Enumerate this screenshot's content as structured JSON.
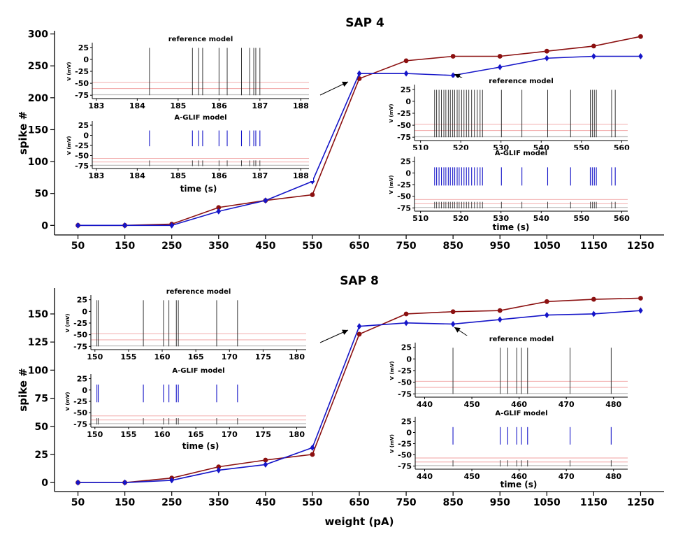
{
  "figure": {
    "xlabel": "weight (pA)"
  },
  "chart_data": [
    {
      "type": "line",
      "title": "SAP 4",
      "ylabel": "spike #",
      "xlabel": "weight (pA)",
      "x": [
        50,
        150,
        250,
        350,
        450,
        550,
        650,
        750,
        850,
        950,
        1050,
        1150,
        1250
      ],
      "xlim": [
        0,
        1300
      ],
      "ylim": [
        -15,
        305
      ],
      "yticks": [
        0,
        50,
        100,
        150,
        200,
        250,
        300
      ],
      "series": [
        {
          "key": "reference",
          "color": "#8b1010",
          "marker": "circle",
          "values": [
            0,
            0,
            2,
            28,
            39,
            48,
            230,
            258,
            265,
            265,
            273,
            281,
            296
          ]
        },
        {
          "key": "aglif",
          "color": "#1515c8",
          "marker": "diamond",
          "values": [
            0,
            0,
            0,
            22,
            39,
            69,
            238,
            238,
            235,
            248,
            262,
            265,
            265
          ]
        }
      ],
      "insets": [
        {
          "title": "reference model",
          "kind": "trace",
          "color": "#222222",
          "ylabel": "V (mV)",
          "xlabel": "",
          "xlim": [
            182.9,
            188.2
          ],
          "xticks": [
            183,
            184,
            185,
            186,
            187,
            188
          ],
          "yticks": [
            25,
            0,
            -25,
            -50,
            -75
          ],
          "spikes": [
            184.3,
            185.35,
            185.5,
            185.6,
            186.0,
            186.2,
            186.55,
            186.75,
            186.85,
            186.9,
            187.0
          ]
        },
        {
          "title": "A-GLIF model",
          "kind": "dual",
          "color": "#1515c8",
          "ylabel": "V (mV)",
          "xlabel": "time (s)",
          "xlim": [
            182.9,
            188.2
          ],
          "xticks": [
            183,
            184,
            185,
            186,
            187,
            188
          ],
          "yticks": [
            25,
            0,
            -25,
            -50,
            -75
          ],
          "spikes": [
            184.3,
            185.35,
            185.5,
            185.6,
            186.0,
            186.2,
            186.55,
            186.75,
            186.85,
            186.9,
            187.0
          ]
        },
        {
          "title": "reference model",
          "kind": "trace",
          "color": "#222222",
          "ylabel": "V (mV)",
          "xlabel": "",
          "xlim": [
            508.5,
            561.5
          ],
          "xticks": [
            510,
            520,
            530,
            540,
            550,
            560
          ],
          "yticks": [
            25,
            0,
            -25,
            -50,
            -75
          ],
          "spikes": [
            513.5,
            514.0,
            514.6,
            515.2,
            515.8,
            516.3,
            516.9,
            517.4,
            518.0,
            518.5,
            519.1,
            519.6,
            520.2,
            520.8,
            521.4,
            522.0,
            522.7,
            523.4,
            524.1,
            524.8,
            525.4,
            530.1,
            535.2,
            541.6,
            547.3,
            552.2,
            552.7,
            553.2,
            553.7,
            557.5,
            558.4
          ]
        },
        {
          "title": "A-GLIF model",
          "kind": "dual",
          "color": "#1515c8",
          "ylabel": "V (mV)",
          "xlabel": "time (s)",
          "xlim": [
            508.5,
            561.5
          ],
          "xticks": [
            510,
            520,
            530,
            540,
            550,
            560
          ],
          "yticks": [
            25,
            0,
            -25,
            -50,
            -75
          ],
          "spikes": [
            513.5,
            514.0,
            514.6,
            515.2,
            515.8,
            516.3,
            516.9,
            517.4,
            518.0,
            518.5,
            519.1,
            519.6,
            520.2,
            520.8,
            521.4,
            522.0,
            522.7,
            523.4,
            524.1,
            524.8,
            525.4,
            530.1,
            535.2,
            541.6,
            547.3,
            552.2,
            552.7,
            553.2,
            553.7,
            557.5,
            558.4
          ]
        }
      ]
    },
    {
      "type": "line",
      "title": "SAP 8",
      "ylabel": "spike #",
      "xlabel": "weight (pA)",
      "x": [
        50,
        150,
        250,
        350,
        450,
        550,
        650,
        750,
        850,
        950,
        1050,
        1150,
        1250
      ],
      "xlim": [
        0,
        1300
      ],
      "ylim": [
        -8,
        173
      ],
      "yticks": [
        0,
        25,
        50,
        75,
        100,
        125,
        150
      ],
      "series": [
        {
          "key": "reference",
          "color": "#8b1010",
          "marker": "circle",
          "values": [
            0,
            0,
            4,
            14,
            20,
            25,
            132,
            150,
            152,
            153,
            161,
            163,
            164
          ]
        },
        {
          "key": "aglif",
          "color": "#1515c8",
          "marker": "diamond",
          "values": [
            0,
            0,
            2,
            11,
            16,
            31,
            139,
            142,
            141,
            145,
            149,
            150,
            153
          ]
        }
      ],
      "insets": [
        {
          "title": "reference model",
          "kind": "trace",
          "color": "#222222",
          "ylabel": "V (mV)",
          "xlabel": "",
          "xlim": [
            149.4,
            181.4
          ],
          "xticks": [
            150,
            155,
            160,
            165,
            170,
            175,
            180
          ],
          "yticks": [
            25,
            0,
            -25,
            -50,
            -75
          ],
          "spikes": [
            150.3,
            150.5,
            157.2,
            160.2,
            161.0,
            162.1,
            162.4,
            168.1,
            171.2
          ]
        },
        {
          "title": "A-GLIF model",
          "kind": "dual",
          "color": "#1515c8",
          "ylabel": "V (mV)",
          "xlabel": "time (s)",
          "xlim": [
            149.4,
            181.4
          ],
          "xticks": [
            150,
            155,
            160,
            165,
            170,
            175,
            180
          ],
          "yticks": [
            25,
            0,
            -25,
            -50,
            -75
          ],
          "spikes": [
            150.3,
            150.5,
            157.2,
            160.2,
            161.0,
            162.1,
            162.4,
            168.1,
            171.2
          ]
        },
        {
          "title": "reference model",
          "kind": "trace",
          "color": "#222222",
          "ylabel": "V (mV)",
          "xlabel": "",
          "xlim": [
            438,
            483
          ],
          "xticks": [
            440,
            450,
            460,
            470,
            480
          ],
          "yticks": [
            25,
            0,
            -25,
            -50,
            -75
          ],
          "spikes": [
            446.0,
            456.0,
            457.6,
            459.5,
            460.5,
            461.8,
            470.8,
            479.5
          ]
        },
        {
          "title": "A-GLIF model",
          "kind": "dual",
          "color": "#1515c8",
          "ylabel": "V (mV)",
          "xlabel": "time (s)",
          "xlim": [
            438,
            483
          ],
          "xticks": [
            440,
            450,
            460,
            470,
            480
          ],
          "yticks": [
            25,
            0,
            -25,
            -50,
            -75
          ],
          "spikes": [
            446.0,
            456.0,
            457.6,
            459.5,
            460.5,
            461.8,
            470.8,
            479.5
          ]
        }
      ]
    }
  ]
}
